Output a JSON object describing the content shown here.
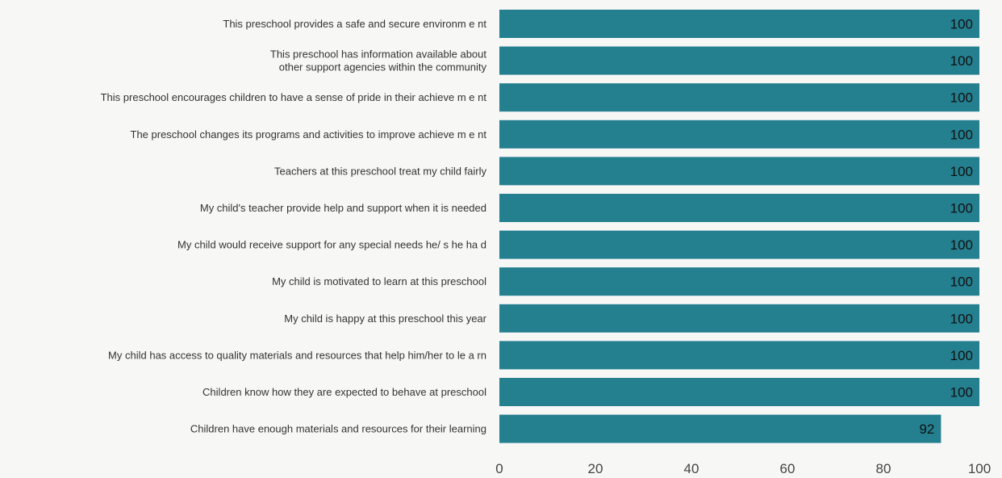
{
  "chart_data": {
    "type": "bar",
    "orientation": "horizontal",
    "categories": [
      "This preschool provides a safe and secure environm e nt",
      "This preschool has information available about\nother support agencies within the community",
      "This preschool encourages children to have a sense of pride in their achieve m e nt",
      "The preschool changes its programs and activities to improve achieve m e nt",
      "Teachers at this preschool treat my child fairly",
      "My child's teacher provide help and support when it is needed",
      "My child would receive support for any special needs he/ s he ha d",
      "My child is motivated to learn at this preschool",
      "My child is happy at this preschool this year",
      "My child has access to quality materials and resources that help him/her to le a rn",
      "Children know how they are expected to behave at preschool",
      "Children have enough materials and resources for their learning"
    ],
    "values": [
      100,
      100,
      100,
      100,
      100,
      100,
      100,
      100,
      100,
      100,
      100,
      92
    ],
    "value_labels": [
      "100",
      "100",
      "100",
      "100",
      "100",
      "100",
      "100",
      "100",
      "100",
      "100",
      "100",
      "92"
    ],
    "x_ticks": [
      "0",
      "20",
      "40",
      "60",
      "80",
      "100"
    ],
    "xlim": [
      0,
      100
    ],
    "title": "",
    "xlabel": "",
    "ylabel": "",
    "grid": false,
    "bar_color": "#247f8f"
  }
}
